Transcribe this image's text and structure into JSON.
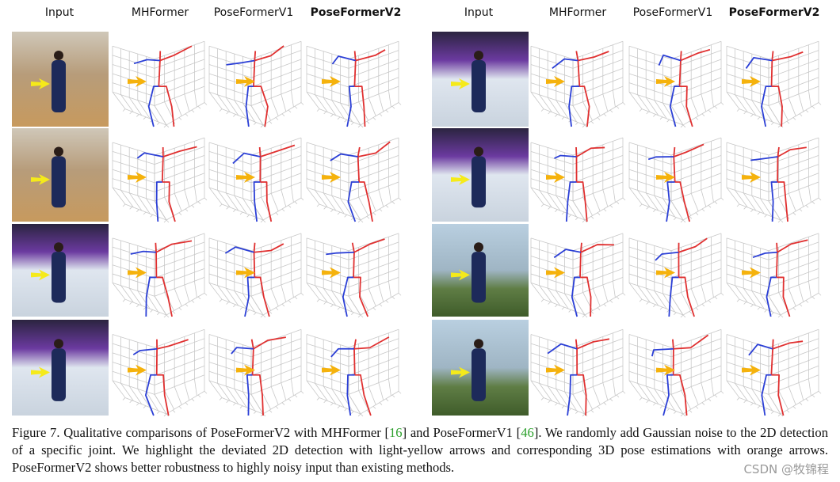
{
  "headers": {
    "left": [
      "Input",
      "MHFormer",
      "PoseFormerV1",
      "PoseFormerV2"
    ],
    "right": [
      "Input",
      "MHFormer",
      "PoseFormerV1",
      "PoseFormerV2"
    ]
  },
  "caption": [
    "Figure 7. Qualitative comparisons of PoseFormerV2 with MHFormer [",
    "16",
    "] and PoseFormerV1 [",
    "46",
    "]. We randomly add Gaussian noise to the 2D detection of a specific joint. We highlight the deviated 2D detection with light-yellow arrows and corresponding 3D pose estimations with orange arrows. PoseFormerV2 shows better robustness to highly noisy input than existing methods."
  ],
  "watermark": "CSDN @牧锦程"
}
